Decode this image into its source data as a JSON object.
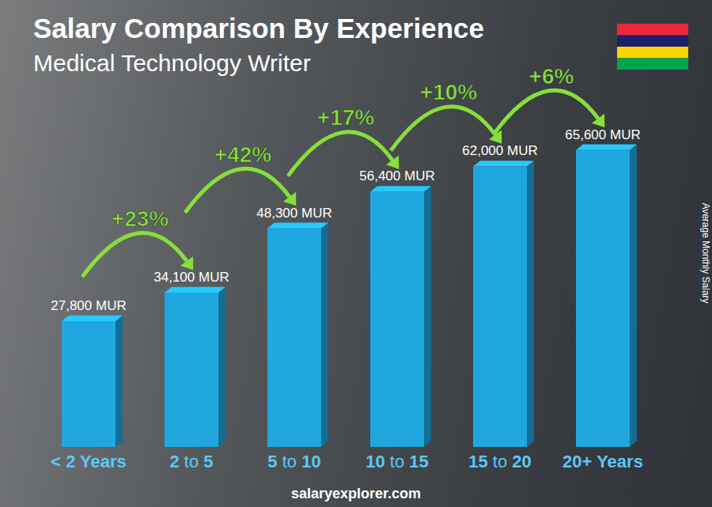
{
  "chart_data": {
    "type": "bar",
    "title": "Salary Comparison By Experience",
    "subtitle": "Medical Technology Writer",
    "categories": [
      "< 2 Years",
      "2 to 5",
      "5 to 10",
      "10 to 15",
      "15 to 20",
      "20+ Years"
    ],
    "values": [
      27800,
      34100,
      48300,
      56400,
      62000,
      65600
    ],
    "value_labels": [
      "27,800 MUR",
      "34,100 MUR",
      "48,300 MUR",
      "56,400 MUR",
      "62,000 MUR",
      "65,600 MUR"
    ],
    "annotations": [
      "+23%",
      "+42%",
      "+17%",
      "+10%",
      "+6%"
    ],
    "y_label": "Average Monthly Salary",
    "source": "salaryexplorer.com",
    "color": "#1fa8e0",
    "ylim": [
      0,
      75000
    ],
    "data_labels": true,
    "tick_labels": "x",
    "grid": false
  }
}
